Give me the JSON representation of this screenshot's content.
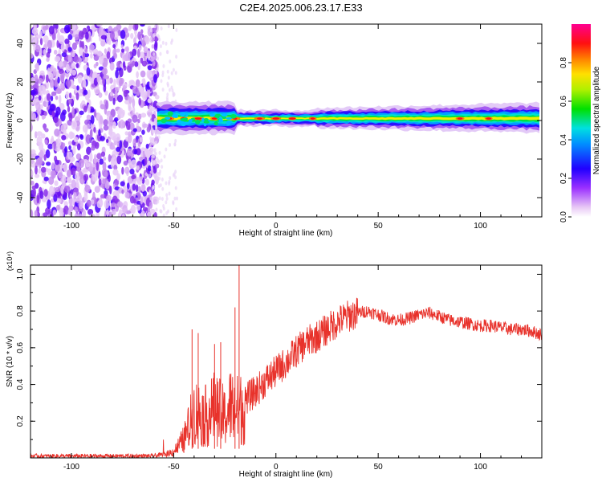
{
  "title": "C2E4.2025.006.23.17.E33",
  "chart_data": [
    {
      "type": "heatmap",
      "xlabel": "Height of straight line (km)",
      "ylabel": "Frequency (Hz)",
      "xlim": [
        -120,
        130
      ],
      "ylim": [
        -50,
        50
      ],
      "x_ticks": [
        "-100",
        "-50",
        "0",
        "50",
        "100"
      ],
      "x_tick_values": [
        -100,
        -50,
        0,
        50,
        100
      ],
      "y_ticks": [
        "40",
        "20",
        "0",
        "-20",
        "-40"
      ],
      "y_tick_values": [
        40,
        20,
        0,
        -20,
        -40
      ],
      "colorbar": {
        "label": "Normalized spectral amplitude",
        "range": [
          0,
          1
        ],
        "ticks": [
          "0.0",
          "0.2",
          "0.4",
          "0.6",
          "0.8"
        ],
        "tick_values": [
          0.0,
          0.2,
          0.4,
          0.6,
          0.8
        ],
        "colormap": "rainbow (white-purple-blue-cyan-green-yellow-red-magenta)"
      },
      "features": {
        "scattered_noise_region_x": [
          -120,
          -58
        ],
        "band_center_frequency_hz": 1,
        "band_start_x": -58,
        "high_amplitude_spots_x": [
          -52,
          -45,
          -38,
          -30,
          -20,
          -8,
          0,
          8,
          18,
          90,
          104
        ]
      },
      "grid": false
    },
    {
      "type": "line",
      "xlabel": "Height of straight line (km)",
      "ylabel": "SNR (10 * v/v)",
      "y_multiplier": "(x10⁴)",
      "xlim": [
        -120,
        130
      ],
      "ylim": [
        0,
        1.05
      ],
      "x_ticks": [
        "-100",
        "-50",
        "0",
        "50",
        "100"
      ],
      "x_tick_values": [
        -100,
        -50,
        0,
        50,
        100
      ],
      "y_ticks": [
        "1.0",
        "0.8",
        "0.6",
        "0.4",
        "0.2"
      ],
      "y_tick_values": [
        1.0,
        0.8,
        0.6,
        0.4,
        0.2
      ],
      "series": [
        {
          "color": "#e8322b",
          "x": [
            -120,
            -100,
            -80,
            -60,
            -55,
            -50,
            -45,
            -42,
            -40,
            -35,
            -30,
            -25,
            -22,
            -20,
            -18,
            -15,
            -10,
            -5,
            0,
            5,
            10,
            15,
            20,
            25,
            30,
            35,
            40,
            45,
            50,
            55,
            60,
            65,
            70,
            75,
            80,
            85,
            90,
            95,
            100,
            105,
            110,
            115,
            120,
            125,
            130
          ],
          "values": [
            0.01,
            0.01,
            0.01,
            0.01,
            0.02,
            0.04,
            0.12,
            0.22,
            0.3,
            0.26,
            0.32,
            0.26,
            0.34,
            0.3,
            0.31,
            0.32,
            0.36,
            0.42,
            0.47,
            0.52,
            0.58,
            0.63,
            0.66,
            0.7,
            0.74,
            0.77,
            0.79,
            0.8,
            0.78,
            0.76,
            0.75,
            0.76,
            0.78,
            0.79,
            0.77,
            0.75,
            0.74,
            0.73,
            0.72,
            0.72,
            0.71,
            0.7,
            0.7,
            0.69,
            0.67
          ]
        }
      ],
      "spikes": {
        "x": [
          -41,
          -38,
          -30,
          -27,
          -20,
          -18
        ],
        "values": [
          0.7,
          0.68,
          0.62,
          0.63,
          0.82,
          1.05
        ]
      },
      "grid": false
    }
  ]
}
